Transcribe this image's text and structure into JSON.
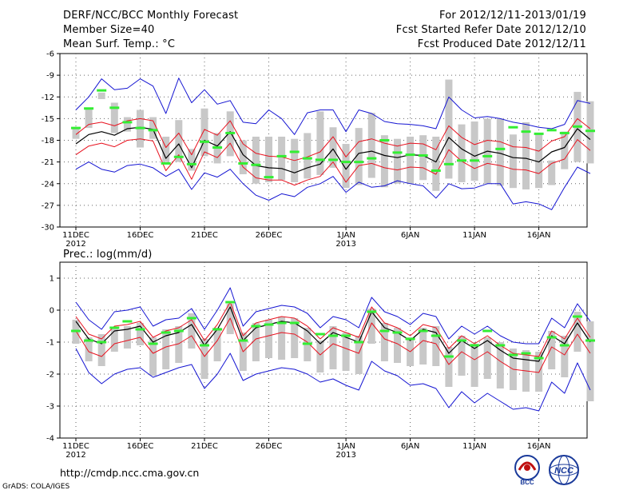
{
  "header": {
    "left_line1": "DERF/NCC/BCC Monthly Forecast",
    "left_line2": "Member Size=40",
    "left_line3": "Mean Surf. Temp.: °C",
    "right_line1": "For 2012/12/11-2013/01/19",
    "right_line2": "Fcst Started Refer Date 2012/12/10",
    "right_line3": "Fcst Produced Date 2012/12/11"
  },
  "panel2_title": "Prec.: log(mm/d)",
  "footer": {
    "url": "http://cmdp.ncc.cma.gov.cn",
    "credit": "GrADS: COLA/IGES"
  },
  "logos": {
    "bcc": "BCC",
    "ncc": "NCC"
  },
  "colors": {
    "ensemble_mean": "#000000",
    "spread": "#e8121f",
    "extreme": "#1515d2",
    "box": "#c8c8c8",
    "observed": "#33ee33",
    "grid": "#666666"
  },
  "chart_data": [
    {
      "type": "line",
      "title": "Mean Surf. Temp.: °C",
      "x_tick_labels": [
        "11DEC",
        "16DEC",
        "21DEC",
        "26DEC",
        "1JAN",
        "6JAN",
        "11JAN",
        "16JAN"
      ],
      "x_tick_sublabels": [
        "2012",
        "",
        "",
        "",
        "2013",
        "",
        "",
        ""
      ],
      "x_tick_day_index": [
        0,
        5,
        10,
        15,
        21,
        26,
        31,
        36
      ],
      "ylim": [
        -30,
        -6
      ],
      "yticks": [
        -6,
        -9,
        -12,
        -15,
        -18,
        -21,
        -24,
        -27,
        -30
      ],
      "series": [
        {
          "name": "Ensemble mean",
          "values": [
            -18.5,
            -17.2,
            -16.8,
            -17.3,
            -16.4,
            -16.2,
            -16.5,
            -20.5,
            -18.5,
            -21.8,
            -18.0,
            -18.8,
            -16.8,
            -20.0,
            -21.5,
            -21.8,
            -21.9,
            -22.5,
            -21.8,
            -21.3,
            -19.2,
            -22.0,
            -19.8,
            -19.5,
            -20.1,
            -20.4,
            -20.0,
            -20.1,
            -21.0,
            -17.6,
            -19.2,
            -20.2,
            -19.5,
            -19.8,
            -20.4,
            -20.5,
            -21.0,
            -19.6,
            -19.0,
            -16.4,
            -17.9
          ]
        },
        {
          "name": "Upper spread",
          "values": [
            -17.2,
            -15.8,
            -15.5,
            -16.0,
            -15.3,
            -15.0,
            -15.3,
            -19.0,
            -17.0,
            -20.0,
            -16.5,
            -17.3,
            -15.3,
            -18.5,
            -19.8,
            -20.2,
            -20.3,
            -20.8,
            -20.3,
            -19.6,
            -17.5,
            -20.3,
            -18.2,
            -17.8,
            -18.4,
            -18.8,
            -18.4,
            -18.5,
            -19.3,
            -16.0,
            -17.6,
            -18.6,
            -18.0,
            -18.2,
            -18.9,
            -19.0,
            -19.5,
            -18.1,
            -17.5,
            -15.0,
            -16.4
          ]
        },
        {
          "name": "Lower spread",
          "values": [
            -20.0,
            -18.8,
            -18.4,
            -18.9,
            -18.0,
            -17.8,
            -18.1,
            -22.2,
            -20.0,
            -23.4,
            -19.6,
            -20.4,
            -18.4,
            -21.7,
            -23.2,
            -23.5,
            -23.5,
            -24.2,
            -23.5,
            -23.0,
            -21.0,
            -23.8,
            -21.5,
            -21.2,
            -21.8,
            -22.1,
            -21.7,
            -21.8,
            -22.7,
            -19.3,
            -20.9,
            -21.9,
            -21.2,
            -21.5,
            -22.0,
            -22.1,
            -22.6,
            -21.2,
            -20.6,
            -17.9,
            -19.4
          ]
        },
        {
          "name": "Maximum",
          "values": [
            -13.8,
            -12.0,
            -9.5,
            -11.0,
            -10.8,
            -9.5,
            -10.5,
            -14.3,
            -9.4,
            -12.8,
            -11.0,
            -13.0,
            -12.5,
            -15.5,
            -15.7,
            -13.8,
            -15.0,
            -17.2,
            -14.2,
            -13.8,
            -13.8,
            -16.8,
            -13.8,
            -14.3,
            -15.4,
            -15.7,
            -15.8,
            -16.0,
            -16.4,
            -12.0,
            -13.8,
            -14.9,
            -14.7,
            -15.0,
            -15.5,
            -15.8,
            -16.2,
            -16.4,
            -15.8,
            -12.5,
            -12.9
          ]
        },
        {
          "name": "Minimum",
          "values": [
            -22.0,
            -21.0,
            -22.0,
            -22.4,
            -21.5,
            -21.3,
            -21.8,
            -23.0,
            -22.0,
            -24.8,
            -22.5,
            -23.1,
            -22.0,
            -24.0,
            -25.6,
            -26.3,
            -25.4,
            -25.8,
            -24.5,
            -24.0,
            -23.0,
            -25.2,
            -23.8,
            -24.5,
            -24.3,
            -23.6,
            -24.0,
            -24.3,
            -26.0,
            -24.0,
            -24.7,
            -24.6,
            -24.0,
            -24.0,
            -26.8,
            -26.5,
            -26.8,
            -27.6,
            -24.5,
            -21.7,
            -22.6
          ]
        },
        {
          "name": "Box upper",
          "values": [
            -16.2,
            -13.6,
            -11.4,
            -12.8,
            -14.8,
            -13.8,
            -14.8,
            -17.5,
            -15.2,
            -19.2,
            -13.6,
            -17.0,
            -14.0,
            -18.0,
            -17.5,
            -17.5,
            -17.5,
            -17.8,
            -17.0,
            -14.0,
            -16.2,
            -18.5,
            -16.3,
            -14.2,
            -17.3,
            -17.8,
            -17.5,
            -17.3,
            -17.5,
            -9.6,
            -15.8,
            -15.4,
            -15.0,
            -15.0,
            -17.2,
            -15.5,
            -17.0,
            -20.8,
            -16.8,
            -11.3,
            -12.6
          ]
        },
        {
          "name": "Box lower",
          "values": [
            -17.8,
            -16.3,
            -12.3,
            -17.0,
            -16.8,
            -19.0,
            -17.8,
            -21.0,
            -21.0,
            -22.2,
            -20.2,
            -21.2,
            -20.2,
            -22.7,
            -24.0,
            -23.8,
            -23.5,
            -23.8,
            -23.3,
            -22.8,
            -21.8,
            -24.6,
            -24.2,
            -23.2,
            -24.5,
            -24.0,
            -24.0,
            -23.5,
            -25.0,
            -23.3,
            -23.8,
            -23.6,
            -24.0,
            -24.3,
            -24.6,
            -24.8,
            -24.6,
            -24.2,
            -22.0,
            -21.0,
            -21.2
          ]
        },
        {
          "name": "Observed",
          "values": [
            -16.3,
            -13.6,
            -11.1,
            -13.5,
            -15.5,
            -16.3,
            -16.6,
            -21.2,
            -20.3,
            -21.3,
            -18.2,
            -19.0,
            -17.0,
            -21.2,
            -21.4,
            -23.1,
            -20.2,
            -19.6,
            -20.5,
            -20.7,
            -20.7,
            -21.0,
            -21.0,
            -20.5,
            -18.0,
            -19.7,
            -20.0,
            -20.1,
            -22.2,
            -21.3,
            -20.8,
            -20.8,
            -20.2,
            -19.2,
            -16.2,
            -16.8,
            -17.1,
            -16.6,
            -17.0,
            -16.1,
            -16.7
          ]
        }
      ]
    },
    {
      "type": "line",
      "title": "Prec.: log(mm/d)",
      "x_tick_labels": [
        "11DEC",
        "16DEC",
        "21DEC",
        "26DEC",
        "1JAN",
        "6JAN",
        "11JAN",
        "16JAN"
      ],
      "x_tick_sublabels": [
        "2012",
        "",
        "",
        "",
        "2013",
        "",
        "",
        ""
      ],
      "x_tick_day_index": [
        0,
        5,
        10,
        15,
        21,
        26,
        31,
        36
      ],
      "ylim": [
        -4,
        1.5
      ],
      "yticks": [
        1,
        0,
        -1,
        -2,
        -3,
        -4
      ],
      "series": [
        {
          "name": "Ensemble mean",
          "values": [
            -0.35,
            -0.9,
            -1.05,
            -0.65,
            -0.6,
            -0.5,
            -1.0,
            -0.8,
            -0.7,
            -0.45,
            -1.1,
            -0.6,
            0.1,
            -0.95,
            -0.55,
            -0.45,
            -0.35,
            -0.4,
            -0.65,
            -1.05,
            -0.7,
            -0.85,
            -1.0,
            -0.05,
            -0.55,
            -0.7,
            -0.95,
            -0.6,
            -0.7,
            -1.35,
            -0.95,
            -1.2,
            -0.95,
            -1.25,
            -1.5,
            -1.55,
            -1.6,
            -0.8,
            -1.05,
            -0.4,
            -1.0
          ]
        },
        {
          "name": "Upper spread",
          "values": [
            -0.2,
            -0.75,
            -0.9,
            -0.5,
            -0.45,
            -0.35,
            -0.85,
            -0.65,
            -0.55,
            -0.3,
            -0.95,
            -0.45,
            0.25,
            -0.8,
            -0.4,
            -0.3,
            -0.2,
            -0.25,
            -0.5,
            -0.9,
            -0.55,
            -0.7,
            -0.85,
            0.1,
            -0.4,
            -0.55,
            -0.8,
            -0.45,
            -0.55,
            -1.2,
            -0.8,
            -1.05,
            -0.8,
            -1.1,
            -1.35,
            -1.4,
            -1.45,
            -0.65,
            -0.9,
            -0.25,
            -0.85
          ]
        },
        {
          "name": "Lower spread",
          "values": [
            -0.65,
            -1.3,
            -1.45,
            -1.05,
            -0.95,
            -0.85,
            -1.35,
            -1.15,
            -1.05,
            -0.8,
            -1.45,
            -0.95,
            -0.25,
            -1.3,
            -0.9,
            -0.8,
            -0.7,
            -0.75,
            -1.0,
            -1.4,
            -1.05,
            -1.2,
            -1.35,
            -0.4,
            -0.9,
            -1.05,
            -1.3,
            -0.95,
            -1.05,
            -1.7,
            -1.3,
            -1.55,
            -1.3,
            -1.6,
            -1.85,
            -1.9,
            -1.95,
            -1.15,
            -1.4,
            -0.75,
            -1.35
          ]
        },
        {
          "name": "Maximum",
          "values": [
            0.25,
            -0.3,
            -0.6,
            -0.05,
            0.0,
            0.1,
            -0.5,
            -0.3,
            -0.25,
            0.05,
            -0.6,
            0.0,
            0.7,
            -0.5,
            -0.05,
            0.05,
            0.15,
            0.1,
            -0.1,
            -0.55,
            -0.2,
            -0.3,
            -0.55,
            0.4,
            -0.05,
            -0.2,
            -0.45,
            -0.1,
            -0.2,
            -0.9,
            -0.5,
            -0.75,
            -0.5,
            -0.8,
            -1.0,
            -1.05,
            -1.05,
            -0.25,
            -0.55,
            0.2,
            -0.35
          ]
        },
        {
          "name": "Minimum",
          "values": [
            -1.2,
            -1.95,
            -2.3,
            -2.0,
            -1.85,
            -1.8,
            -2.1,
            -1.95,
            -1.8,
            -1.7,
            -2.45,
            -2.0,
            -1.35,
            -2.2,
            -2.0,
            -1.9,
            -1.8,
            -1.85,
            -2.0,
            -2.25,
            -2.15,
            -2.35,
            -2.5,
            -1.6,
            -1.9,
            -2.05,
            -2.35,
            -2.3,
            -2.45,
            -3.05,
            -2.55,
            -2.9,
            -2.6,
            -2.85,
            -3.1,
            -3.05,
            -3.15,
            -2.25,
            -2.6,
            -1.65,
            -2.5
          ]
        },
        {
          "name": "Box upper",
          "values": [
            -0.3,
            -0.85,
            -0.75,
            -0.55,
            -0.5,
            -0.4,
            -0.85,
            -0.6,
            -0.5,
            -0.1,
            -0.9,
            -0.55,
            0.2,
            -0.7,
            -0.4,
            -0.3,
            -0.2,
            -0.25,
            -0.55,
            -0.95,
            -0.5,
            -0.7,
            -0.8,
            0.05,
            -0.4,
            -0.55,
            -0.85,
            -0.55,
            -0.5,
            -1.15,
            -0.8,
            -1.05,
            -0.85,
            -1.0,
            -1.2,
            -1.25,
            -1.3,
            -0.65,
            -0.8,
            -0.05,
            -0.35
          ]
        },
        {
          "name": "Box lower",
          "values": [
            -1.05,
            -1.6,
            -1.75,
            -1.3,
            -1.2,
            -1.1,
            -2.05,
            -1.85,
            -1.65,
            -1.2,
            -2.15,
            -1.6,
            -0.75,
            -1.9,
            -1.6,
            -1.5,
            -1.55,
            -1.5,
            -1.6,
            -1.95,
            -1.85,
            -1.9,
            -2.0,
            -1.05,
            -1.6,
            -1.65,
            -1.75,
            -1.7,
            -1.75,
            -2.4,
            -2.05,
            -2.4,
            -2.15,
            -2.45,
            -2.5,
            -2.55,
            -2.55,
            -1.85,
            -2.1,
            -1.3,
            -2.85
          ]
        },
        {
          "name": "Observed",
          "values": [
            -0.65,
            -0.95,
            -1.0,
            -0.55,
            -0.35,
            -0.6,
            -1.05,
            -0.7,
            -0.65,
            -0.25,
            -1.1,
            -0.6,
            0.25,
            -0.95,
            -0.5,
            -0.45,
            -0.4,
            -0.4,
            -1.05,
            -0.75,
            -0.8,
            -0.8,
            -1.0,
            -0.05,
            -0.65,
            -0.7,
            -0.9,
            -0.65,
            -0.8,
            -1.45,
            -0.95,
            -1.1,
            -0.65,
            -1.1,
            -1.4,
            -1.35,
            -1.5,
            -0.85,
            -1.1,
            -0.2,
            -0.95
          ]
        }
      ]
    }
  ]
}
